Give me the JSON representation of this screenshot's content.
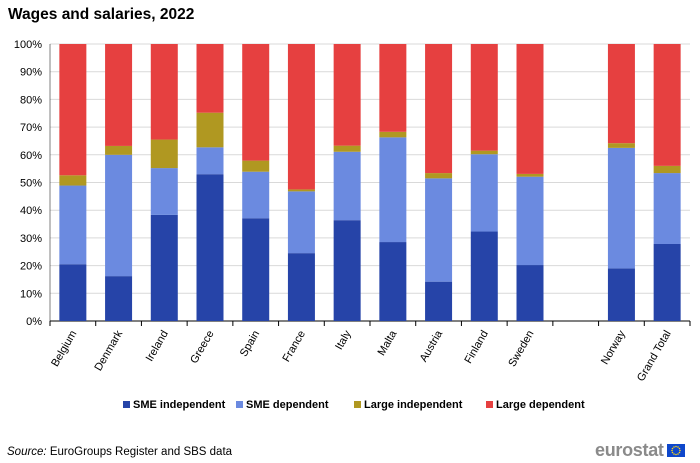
{
  "title": "Wages and salaries, 2022",
  "source_label": "Source:",
  "source_text": "EuroGroups Register and SBS data",
  "logo_text": "eurostat",
  "chart_data": {
    "type": "bar",
    "stacked": true,
    "categories": [
      "Belgium",
      "Denmark",
      "Ireland",
      "Greece",
      "Spain",
      "France",
      "Italy",
      "Malta",
      "Austria",
      "Finland",
      "Sweden",
      "",
      "Norway",
      "Grand Total"
    ],
    "series": [
      {
        "name": "SME independent",
        "color": "#2644a8",
        "values": [
          20.5,
          16.2,
          38.3,
          53.0,
          37.1,
          24.5,
          36.4,
          28.5,
          14.2,
          32.3,
          20.2,
          null,
          19.0,
          27.8
        ]
      },
      {
        "name": "SME dependent",
        "color": "#6b8ae0",
        "values": [
          28.4,
          43.8,
          16.9,
          9.7,
          16.8,
          22.3,
          24.7,
          37.8,
          37.3,
          27.9,
          31.9,
          null,
          43.5,
          25.6
        ]
      },
      {
        "name": "Large independent",
        "color": "#b09821",
        "values": [
          3.7,
          3.2,
          10.3,
          12.5,
          4.0,
          0.7,
          2.2,
          2.0,
          1.9,
          1.3,
          1.0,
          null,
          1.7,
          2.6
        ]
      },
      {
        "name": "Large dependent",
        "color": "#e64040",
        "values": [
          47.4,
          36.8,
          34.5,
          24.8,
          42.1,
          52.5,
          36.7,
          31.7,
          46.6,
          38.5,
          46.9,
          null,
          35.8,
          44.0
        ]
      }
    ],
    "ylim": [
      0,
      100
    ],
    "ytick_labels": [
      "0%",
      "10%",
      "20%",
      "30%",
      "40%",
      "50%",
      "60%",
      "70%",
      "80%",
      "90%",
      "100%"
    ],
    "grid": true,
    "legend_position": "bottom"
  }
}
